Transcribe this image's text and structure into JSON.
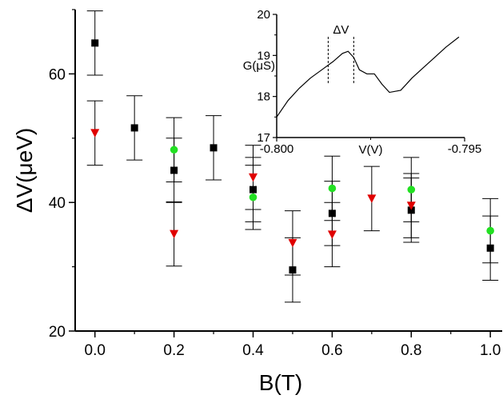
{
  "chart_data": [
    {
      "type": "scatter",
      "xlabel": "B(T)",
      "ylabel": "ΔV(μeV)",
      "xlim": [
        -0.05,
        1.03
      ],
      "ylim": [
        20,
        70
      ],
      "xticks": [
        0.0,
        0.2,
        0.4,
        0.6,
        0.8,
        1.0
      ],
      "xtick_labels": [
        "0.0",
        "0.2",
        "0.4",
        "0.6",
        "0.8",
        "1.0"
      ],
      "yticks": [
        20,
        40,
        60
      ],
      "ytick_labels": [
        "20",
        "40",
        "60"
      ],
      "grid": false,
      "series": [
        {
          "marker": "square",
          "color": "#000000",
          "points": [
            {
              "x": 0.0,
              "y": 64.8,
              "err": 5.0
            },
            {
              "x": 0.1,
              "y": 51.6,
              "err": 5.0
            },
            {
              "x": 0.2,
              "y": 45.0,
              "err": 5.0
            },
            {
              "x": 0.3,
              "y": 48.5,
              "err": 5.0
            },
            {
              "x": 0.4,
              "y": 42.0,
              "err": 5.0
            },
            {
              "x": 0.5,
              "y": 29.5,
              "err": 5.0
            },
            {
              "x": 0.6,
              "y": 38.3,
              "err": 5.0
            },
            {
              "x": 0.8,
              "y": 38.8,
              "err": 5.0
            },
            {
              "x": 1.0,
              "y": 32.9,
              "err": 5.0
            }
          ]
        },
        {
          "marker": "triangle-down",
          "color": "#e00000",
          "points": [
            {
              "x": 0.0,
              "y": 50.8,
              "err": 5.0
            },
            {
              "x": 0.2,
              "y": 35.1,
              "err": 5.0
            },
            {
              "x": 0.4,
              "y": 43.9,
              "err": 5.0
            },
            {
              "x": 0.5,
              "y": 33.7,
              "err": 5.0
            },
            {
              "x": 0.6,
              "y": 35.0,
              "err": 5.0
            },
            {
              "x": 0.7,
              "y": 40.6,
              "err": 5.0
            },
            {
              "x": 0.8,
              "y": 39.5,
              "err": 5.0
            }
          ]
        },
        {
          "marker": "circle",
          "color": "#22e022",
          "points": [
            {
              "x": 0.2,
              "y": 48.2,
              "err": 5.0
            },
            {
              "x": 0.4,
              "y": 40.8,
              "err": 5.0
            },
            {
              "x": 0.6,
              "y": 42.2,
              "err": 5.0
            },
            {
              "x": 0.8,
              "y": 42.0,
              "err": 5.0
            },
            {
              "x": 1.0,
              "y": 35.6,
              "err": 5.0
            }
          ]
        }
      ]
    },
    {
      "type": "line",
      "inset": true,
      "xlabel": "V(V)",
      "ylabel": "G(μS)",
      "xlim": [
        -0.8,
        -0.795
      ],
      "ylim": [
        17,
        20
      ],
      "xtick_labels": [
        "-0.800",
        "-0.795"
      ],
      "yticks": [
        17,
        18,
        19,
        20
      ],
      "ytick_labels": [
        "17",
        "18",
        "19",
        "20"
      ],
      "annotation": "ΔV",
      "dashed_markers_x": [
        -0.79863,
        -0.79795
      ],
      "series": [
        {
          "color": "#000000",
          "x": [
            -0.8,
            -0.7997,
            -0.7994,
            -0.7991,
            -0.7988,
            -0.7985,
            -0.79825,
            -0.7981,
            -0.79795,
            -0.7978,
            -0.7976,
            -0.7974,
            -0.7972,
            -0.797,
            -0.7967,
            -0.7964,
            -0.7961,
            -0.7958,
            -0.7955,
            -0.79515
          ],
          "y": [
            17.5,
            17.9,
            18.2,
            18.45,
            18.65,
            18.85,
            19.05,
            19.1,
            18.95,
            18.65,
            18.55,
            18.55,
            18.3,
            18.1,
            18.15,
            18.45,
            18.7,
            18.95,
            19.2,
            19.45
          ]
        }
      ]
    }
  ]
}
